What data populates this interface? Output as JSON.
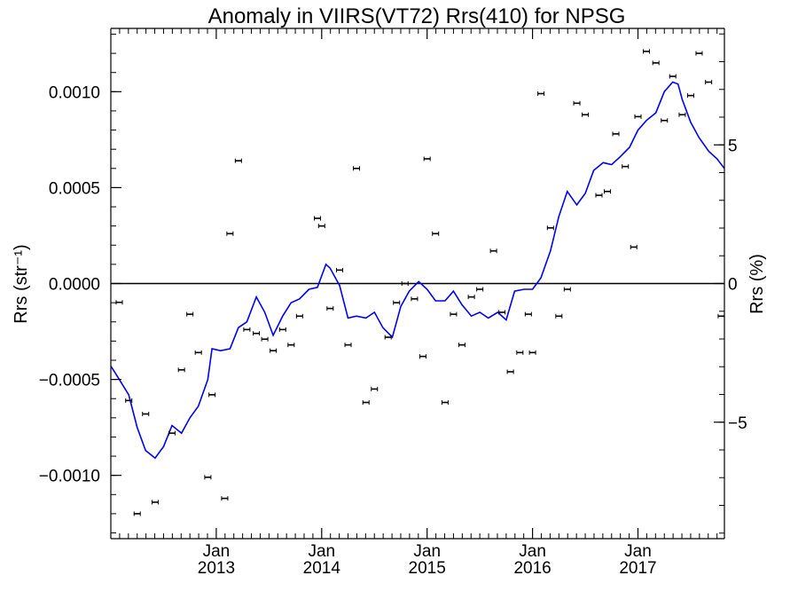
{
  "chart_data": {
    "type": "scatter",
    "title": "Anomaly in VIIRS(VT72) Rrs(410) for NPSG",
    "ylabel_left": "Rrs (str⁻¹)",
    "ylabel_right": "Rrs (%)",
    "xlim": [
      2012.0,
      2017.82
    ],
    "ylim_left": [
      -0.00133,
      0.00133
    ],
    "ylim_right": [
      -9.2,
      9.2
    ],
    "left_ticks": [
      {
        "value": 0.001,
        "label": "0.0010"
      },
      {
        "value": 0.0005,
        "label": "0.0005"
      },
      {
        "value": 0.0,
        "label": "0.0000"
      },
      {
        "value": -0.0005,
        "label": "−0.0005"
      },
      {
        "value": -0.001,
        "label": "−0.0010"
      }
    ],
    "right_ticks": [
      {
        "value": 5,
        "label": "5"
      },
      {
        "value": 0,
        "label": "0"
      },
      {
        "value": -5,
        "label": "−5"
      }
    ],
    "x_ticks": [
      {
        "value": 2013.0,
        "month": "Jan",
        "year": "2013"
      },
      {
        "value": 2014.0,
        "month": "Jan",
        "year": "2014"
      },
      {
        "value": 2015.0,
        "month": "Jan",
        "year": "2015"
      },
      {
        "value": 2016.0,
        "month": "Jan",
        "year": "2016"
      },
      {
        "value": 2017.0,
        "month": "Jan",
        "year": "2017"
      }
    ],
    "series": [
      {
        "kind": "points_with_error_bars",
        "color": "#000000",
        "points": [
          {
            "x": 2012.08,
            "y": -9.8e-05
          },
          {
            "x": 2012.17,
            "y": -0.00061
          },
          {
            "x": 2012.25,
            "y": -0.0012
          },
          {
            "x": 2012.33,
            "y": -0.00068
          },
          {
            "x": 2012.42,
            "y": -0.00114
          },
          {
            "x": 2012.58,
            "y": -0.00078
          },
          {
            "x": 2012.67,
            "y": -0.00045
          },
          {
            "x": 2012.75,
            "y": -0.00016
          },
          {
            "x": 2012.83,
            "y": -0.00036
          },
          {
            "x": 2012.92,
            "y": -0.00101
          },
          {
            "x": 2012.96,
            "y": -0.00058
          },
          {
            "x": 2013.08,
            "y": -0.00112
          },
          {
            "x": 2013.13,
            "y": 0.00026
          },
          {
            "x": 2013.21,
            "y": 0.00064
          },
          {
            "x": 2013.29,
            "y": -0.00024
          },
          {
            "x": 2013.38,
            "y": -0.00026
          },
          {
            "x": 2013.46,
            "y": -0.00029
          },
          {
            "x": 2013.54,
            "y": -0.00035
          },
          {
            "x": 2013.63,
            "y": -0.00024
          },
          {
            "x": 2013.71,
            "y": -0.00032
          },
          {
            "x": 2013.79,
            "y": -0.00017
          },
          {
            "x": 2013.96,
            "y": 0.00034
          },
          {
            "x": 2014.0,
            "y": 0.0003
          },
          {
            "x": 2014.08,
            "y": -0.00013
          },
          {
            "x": 2014.17,
            "y": 7e-05
          },
          {
            "x": 2014.25,
            "y": -0.00032
          },
          {
            "x": 2014.33,
            "y": 0.0006
          },
          {
            "x": 2014.42,
            "y": -0.00062
          },
          {
            "x": 2014.5,
            "y": -0.00055
          },
          {
            "x": 2014.63,
            "y": -0.00028
          },
          {
            "x": 2014.71,
            "y": -0.0001
          },
          {
            "x": 2014.79,
            "y": 0.0
          },
          {
            "x": 2014.88,
            "y": -8e-05
          },
          {
            "x": 2014.96,
            "y": -0.00038
          },
          {
            "x": 2015.0,
            "y": 0.00065
          },
          {
            "x": 2015.08,
            "y": 0.00026
          },
          {
            "x": 2015.17,
            "y": -0.00062
          },
          {
            "x": 2015.25,
            "y": -0.00016
          },
          {
            "x": 2015.33,
            "y": -0.00032
          },
          {
            "x": 2015.42,
            "y": -7e-05
          },
          {
            "x": 2015.5,
            "y": -3e-05
          },
          {
            "x": 2015.63,
            "y": 0.00017
          },
          {
            "x": 2015.71,
            "y": -0.00015
          },
          {
            "x": 2015.79,
            "y": -0.00046
          },
          {
            "x": 2015.88,
            "y": -0.00036
          },
          {
            "x": 2015.96,
            "y": -0.00016
          },
          {
            "x": 2016.0,
            "y": -0.00036
          },
          {
            "x": 2016.08,
            "y": 0.00099
          },
          {
            "x": 2016.17,
            "y": 0.00029
          },
          {
            "x": 2016.25,
            "y": -0.00017
          },
          {
            "x": 2016.33,
            "y": -3e-05
          },
          {
            "x": 2016.42,
            "y": 0.00094
          },
          {
            "x": 2016.5,
            "y": 0.00088
          },
          {
            "x": 2016.63,
            "y": 0.00046
          },
          {
            "x": 2016.71,
            "y": 0.00048
          },
          {
            "x": 2016.79,
            "y": 0.00078
          },
          {
            "x": 2016.88,
            "y": 0.00061
          },
          {
            "x": 2016.96,
            "y": 0.00019
          },
          {
            "x": 2017.0,
            "y": 0.00087
          },
          {
            "x": 2017.08,
            "y": 0.00121
          },
          {
            "x": 2017.17,
            "y": 0.00115
          },
          {
            "x": 2017.25,
            "y": 0.00085
          },
          {
            "x": 2017.33,
            "y": 0.00108
          },
          {
            "x": 2017.42,
            "y": 0.00088
          },
          {
            "x": 2017.5,
            "y": 0.00098
          },
          {
            "x": 2017.58,
            "y": 0.0012
          },
          {
            "x": 2017.67,
            "y": 0.00105
          },
          {
            "x": 2017.79,
            "y": -0.00017
          }
        ]
      },
      {
        "kind": "line",
        "color": "#0000ee",
        "x": [
          2012.0,
          2012.08,
          2012.17,
          2012.25,
          2012.33,
          2012.42,
          2012.5,
          2012.58,
          2012.67,
          2012.75,
          2012.83,
          2012.92,
          2012.96,
          2013.04,
          2013.13,
          2013.21,
          2013.29,
          2013.38,
          2013.46,
          2013.54,
          2013.63,
          2013.71,
          2013.79,
          2013.88,
          2013.96,
          2014.04,
          2014.08,
          2014.17,
          2014.25,
          2014.33,
          2014.42,
          2014.5,
          2014.58,
          2014.67,
          2014.75,
          2014.83,
          2014.92,
          2015.0,
          2015.08,
          2015.17,
          2015.25,
          2015.33,
          2015.42,
          2015.5,
          2015.58,
          2015.67,
          2015.75,
          2015.83,
          2015.92,
          2016.0,
          2016.04,
          2016.08,
          2016.17,
          2016.25,
          2016.33,
          2016.42,
          2016.5,
          2016.58,
          2016.67,
          2016.75,
          2016.83,
          2016.92,
          2017.0,
          2017.08,
          2017.17,
          2017.25,
          2017.33,
          2017.38,
          2017.42,
          2017.5,
          2017.58,
          2017.67,
          2017.75,
          2017.82
        ],
        "y": [
          -0.00043,
          -0.0005,
          -0.00058,
          -0.00075,
          -0.00087,
          -0.00091,
          -0.00085,
          -0.00074,
          -0.00078,
          -0.0007,
          -0.00064,
          -0.0005,
          -0.00034,
          -0.00035,
          -0.00034,
          -0.00023,
          -0.0002,
          -7e-05,
          -0.00015,
          -0.00027,
          -0.00017,
          -0.0001,
          -8e-05,
          -3e-05,
          -2e-05,
          0.0001,
          8e-05,
          -1e-05,
          -0.00018,
          -0.00017,
          -0.00018,
          -0.00015,
          -0.00023,
          -0.00028,
          -0.00012,
          -4e-05,
          1e-05,
          -3e-05,
          -9e-05,
          -9e-05,
          -4e-05,
          -0.00011,
          -0.00017,
          -0.00015,
          -0.00018,
          -0.00015,
          -0.00019,
          -4e-05,
          -3e-05,
          -3e-05,
          0.0,
          3e-05,
          0.00017,
          0.00035,
          0.00048,
          0.00041,
          0.00047,
          0.00059,
          0.00063,
          0.00062,
          0.00066,
          0.00071,
          0.0008,
          0.00085,
          0.00089,
          0.001,
          0.00105,
          0.00104,
          0.00096,
          0.00084,
          0.00076,
          0.00069,
          0.00065,
          0.0006
        ]
      }
    ]
  }
}
